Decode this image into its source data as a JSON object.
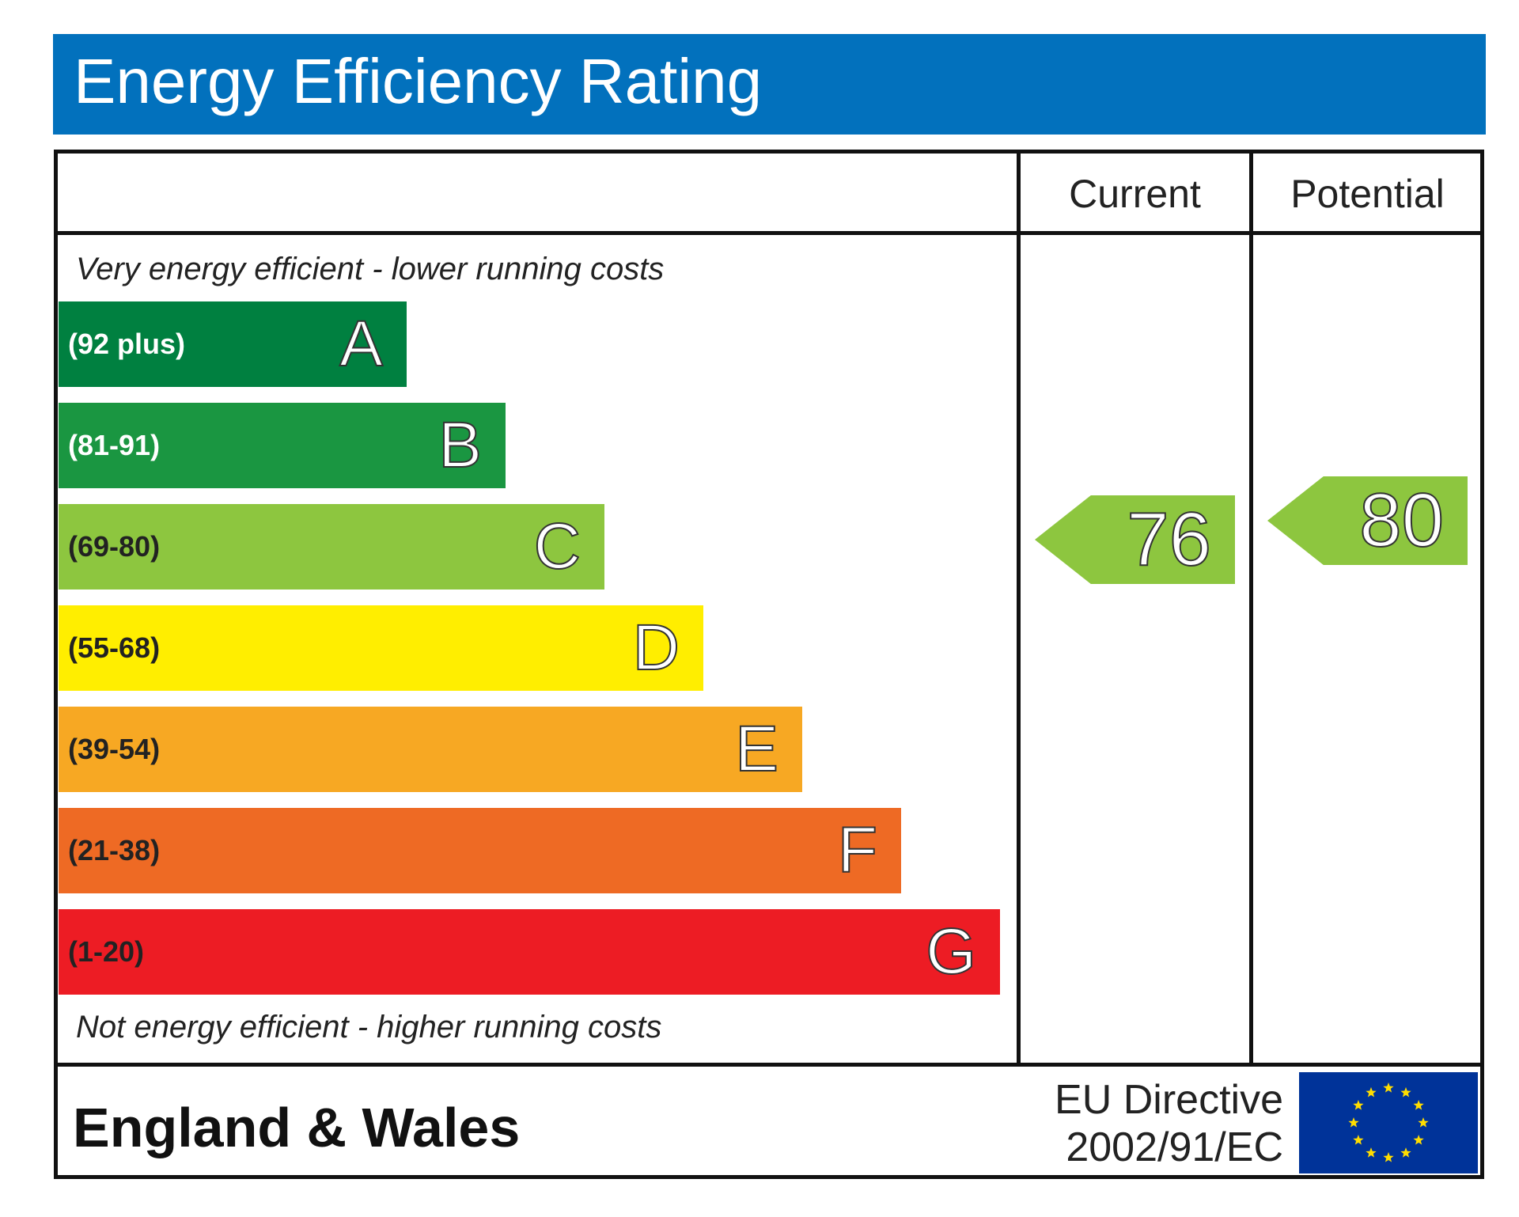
{
  "title": "Energy Efficiency Rating",
  "columns": {
    "current": "Current",
    "potential": "Potential"
  },
  "top_note": "Very energy efficient - lower running costs",
  "bottom_note": "Not energy efficient - higher running costs",
  "footer": {
    "country": "England & Wales",
    "directive_line1": "EU Directive",
    "directive_line2": "2002/91/EC"
  },
  "colors": {
    "header": "#0271bd",
    "band_A": "#008040",
    "band_B": "#1a9641",
    "band_C": "#8dc63f",
    "band_D": "#ffee00",
    "band_E": "#f7a823",
    "band_F": "#ee6a24",
    "band_G": "#ed1c24",
    "eu_flag": "#003399",
    "eu_stars": "#ffdd00"
  },
  "chart_data": {
    "type": "bar",
    "title": "Energy Efficiency Rating",
    "categories": [
      "A",
      "B",
      "C",
      "D",
      "E",
      "F",
      "G"
    ],
    "bands": [
      {
        "letter": "A",
        "range": "(92 plus)",
        "color": "#008040",
        "range_color": "#ffffff"
      },
      {
        "letter": "B",
        "range": "(81-91)",
        "color": "#1a9641",
        "range_color": "#ffffff"
      },
      {
        "letter": "C",
        "range": "(69-80)",
        "color": "#8dc63f",
        "range_color": "#222222"
      },
      {
        "letter": "D",
        "range": "(55-68)",
        "color": "#ffee00",
        "range_color": "#222222"
      },
      {
        "letter": "E",
        "range": "(39-54)",
        "color": "#f7a823",
        "range_color": "#222222"
      },
      {
        "letter": "F",
        "range": "(21-38)",
        "color": "#ee6a24",
        "range_color": "#222222"
      },
      {
        "letter": "G",
        "range": "(1-20)",
        "color": "#ed1c24",
        "range_color": "#222222"
      }
    ],
    "current": {
      "label": "Current",
      "value": 76,
      "band": "C",
      "color": "#8dc63f"
    },
    "potential": {
      "label": "Potential",
      "value": 80,
      "band": "C",
      "color": "#8dc63f"
    }
  }
}
